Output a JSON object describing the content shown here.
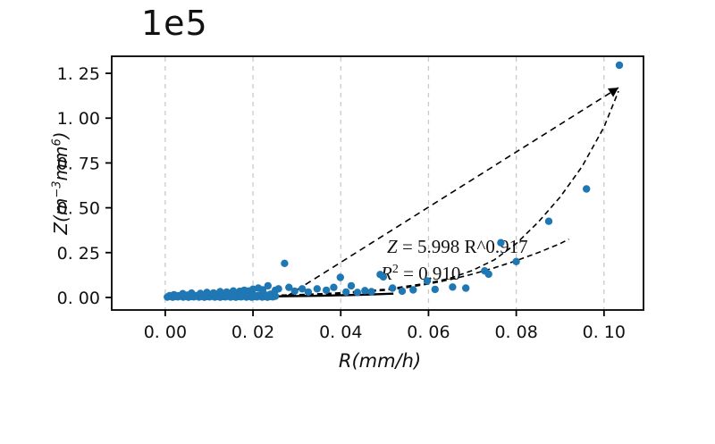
{
  "figure": {
    "offset_label": "1e5",
    "background": "#ffffff"
  },
  "axes": {
    "xlabel": "R(mm/h)",
    "ylabel_parts": {
      "p1": "Z(m",
      "s1": "−3",
      "p2": "mm",
      "s2": "6",
      "p3": ")"
    },
    "x_tick_labels": [
      "0. 00",
      "0. 02",
      "0. 04",
      "0. 06",
      "0. 08",
      "0. 10"
    ],
    "y_tick_labels": [
      "0. 00",
      "0. 25",
      "0. 50",
      "0. 75",
      "1. 00",
      "1. 25"
    ]
  },
  "annotation": {
    "line1_var": "Z",
    "line1_rest": " = 5.998 R^0.917",
    "line2_var": "R",
    "line2_sup": "2",
    "line2_rest": " = 0.910"
  },
  "chart_data": {
    "type": "scatter",
    "title": "",
    "xlabel": "R(mm/h)",
    "ylabel": "Z(m^-3 mm^6)",
    "y_offset_multiplier": "1e5",
    "fit_equation": "Z = 5.998 R^0.917",
    "r_squared": 0.91,
    "grid": "vertical dashed gridlines at x ticks",
    "legend": "none",
    "xlim": [
      -0.0122,
      0.109
    ],
    "ylim_1e5": [
      -0.07,
      1.345
    ],
    "x_tick_values": [
      0.0,
      0.02,
      0.04,
      0.06,
      0.08,
      0.1
    ],
    "y_tick_values_1e5": [
      0.0,
      0.25,
      0.5,
      0.75,
      1.0,
      1.25
    ],
    "colors": {
      "point": "#1f77b4",
      "curve": "#000000",
      "grid": "#c9c9c9",
      "spine": "#000000"
    },
    "points_1e5": [
      [
        0.0005,
        0.002
      ],
      [
        0.0011,
        0.006
      ],
      [
        0.0017,
        0.001
      ],
      [
        0.0023,
        0.005
      ],
      [
        0.0029,
        0.003
      ],
      [
        0.0035,
        0.007
      ],
      [
        0.0041,
        0.002
      ],
      [
        0.0047,
        0.006
      ],
      [
        0.0053,
        0.001
      ],
      [
        0.0059,
        0.005
      ],
      [
        0.0065,
        0.003
      ],
      [
        0.0071,
        0.007
      ],
      [
        0.0077,
        0.002
      ],
      [
        0.0083,
        0.006
      ],
      [
        0.0089,
        0.001
      ],
      [
        0.0095,
        0.005
      ],
      [
        0.0101,
        0.003
      ],
      [
        0.0107,
        0.007
      ],
      [
        0.0113,
        0.002
      ],
      [
        0.0119,
        0.006
      ],
      [
        0.0125,
        0.001
      ],
      [
        0.0131,
        0.005
      ],
      [
        0.0137,
        0.003
      ],
      [
        0.0143,
        0.007
      ],
      [
        0.0149,
        0.002
      ],
      [
        0.0155,
        0.006
      ],
      [
        0.0161,
        0.001
      ],
      [
        0.0167,
        0.005
      ],
      [
        0.0173,
        0.003
      ],
      [
        0.0179,
        0.007
      ],
      [
        0.0185,
        0.002
      ],
      [
        0.0191,
        0.006
      ],
      [
        0.0197,
        0.001
      ],
      [
        0.0203,
        0.005
      ],
      [
        0.0209,
        0.003
      ],
      [
        0.0215,
        0.007
      ],
      [
        0.0221,
        0.002
      ],
      [
        0.0227,
        0.006
      ],
      [
        0.0233,
        0.001
      ],
      [
        0.0239,
        0.005
      ],
      [
        0.0245,
        0.003
      ],
      [
        0.0251,
        0.007
      ],
      [
        0.001,
        0.01
      ],
      [
        0.002,
        0.015
      ],
      [
        0.003,
        0.009
      ],
      [
        0.004,
        0.016
      ],
      [
        0.005,
        0.012
      ],
      [
        0.006,
        0.018
      ],
      [
        0.007,
        0.01
      ],
      [
        0.008,
        0.015
      ],
      [
        0.009,
        0.009
      ],
      [
        0.01,
        0.016
      ],
      [
        0.011,
        0.012
      ],
      [
        0.012,
        0.018
      ],
      [
        0.013,
        0.01
      ],
      [
        0.014,
        0.015
      ],
      [
        0.015,
        0.009
      ],
      [
        0.016,
        0.016
      ],
      [
        0.017,
        0.012
      ],
      [
        0.018,
        0.018
      ],
      [
        0.019,
        0.01
      ],
      [
        0.02,
        0.015
      ],
      [
        0.021,
        0.009
      ],
      [
        0.022,
        0.016
      ],
      [
        0.023,
        0.012
      ],
      [
        0.024,
        0.018
      ],
      [
        0.004,
        0.021
      ],
      [
        0.006,
        0.024
      ],
      [
        0.008,
        0.022
      ],
      [
        0.0095,
        0.028
      ],
      [
        0.011,
        0.025
      ],
      [
        0.0125,
        0.032
      ],
      [
        0.014,
        0.03
      ],
      [
        0.0155,
        0.036
      ],
      [
        0.017,
        0.034
      ],
      [
        0.018,
        0.04
      ],
      [
        0.019,
        0.036
      ],
      [
        0.02,
        0.046
      ],
      [
        0.0212,
        0.052
      ],
      [
        0.0222,
        0.042
      ],
      [
        0.0234,
        0.065
      ],
      [
        0.0251,
        0.04
      ],
      [
        0.0258,
        0.048
      ],
      [
        0.0272,
        0.19
      ],
      [
        0.0282,
        0.056
      ],
      [
        0.0295,
        0.035
      ],
      [
        0.0312,
        0.048
      ],
      [
        0.0326,
        0.03
      ],
      [
        0.0346,
        0.048
      ],
      [
        0.0367,
        0.04
      ],
      [
        0.0384,
        0.056
      ],
      [
        0.0399,
        0.112
      ],
      [
        0.0412,
        0.03
      ],
      [
        0.0424,
        0.065
      ],
      [
        0.0438,
        0.028
      ],
      [
        0.0455,
        0.038
      ],
      [
        0.047,
        0.032
      ],
      [
        0.049,
        0.128
      ],
      [
        0.0497,
        0.115
      ],
      [
        0.0518,
        0.052
      ],
      [
        0.054,
        0.035
      ],
      [
        0.0565,
        0.042
      ],
      [
        0.0597,
        0.092
      ],
      [
        0.0615,
        0.045
      ],
      [
        0.0655,
        0.058
      ],
      [
        0.0685,
        0.052
      ],
      [
        0.0728,
        0.148
      ],
      [
        0.0737,
        0.13
      ],
      [
        0.0765,
        0.305
      ],
      [
        0.08,
        0.2
      ],
      [
        0.0874,
        0.425
      ],
      [
        0.096,
        0.605
      ],
      [
        0.1035,
        1.295
      ]
    ],
    "fit_curve_1e5": [
      [
        0.0,
        0.003
      ],
      [
        0.01,
        0.005
      ],
      [
        0.02,
        0.009
      ],
      [
        0.03,
        0.015
      ],
      [
        0.04,
        0.026
      ],
      [
        0.05,
        0.045
      ],
      [
        0.06,
        0.08
      ],
      [
        0.065,
        0.108
      ],
      [
        0.07,
        0.15
      ],
      [
        0.075,
        0.21
      ],
      [
        0.08,
        0.3
      ],
      [
        0.085,
        0.42
      ],
      [
        0.09,
        0.56
      ],
      [
        0.095,
        0.73
      ],
      [
        0.1,
        0.95
      ],
      [
        0.1033,
        1.15
      ]
    ],
    "lower_curve_1e5": [
      [
        0.0,
        0.0
      ],
      [
        0.01,
        0.002
      ],
      [
        0.02,
        0.005
      ],
      [
        0.03,
        0.01
      ],
      [
        0.04,
        0.02
      ],
      [
        0.05,
        0.04
      ],
      [
        0.055,
        0.055
      ],
      [
        0.06,
        0.075
      ],
      [
        0.065,
        0.1
      ],
      [
        0.07,
        0.13
      ],
      [
        0.075,
        0.165
      ],
      [
        0.08,
        0.205
      ],
      [
        0.085,
        0.25
      ],
      [
        0.09,
        0.3
      ],
      [
        0.092,
        0.325
      ]
    ],
    "solid_line_1e5": [
      [
        0.0,
        0.001
      ],
      [
        0.02,
        0.004
      ],
      [
        0.035,
        0.009
      ],
      [
        0.045,
        0.015
      ],
      [
        0.052,
        0.021
      ]
    ],
    "arrow_1e5": {
      "from": [
        0.0278,
        0.008
      ],
      "to": [
        0.1033,
        1.17
      ]
    }
  }
}
